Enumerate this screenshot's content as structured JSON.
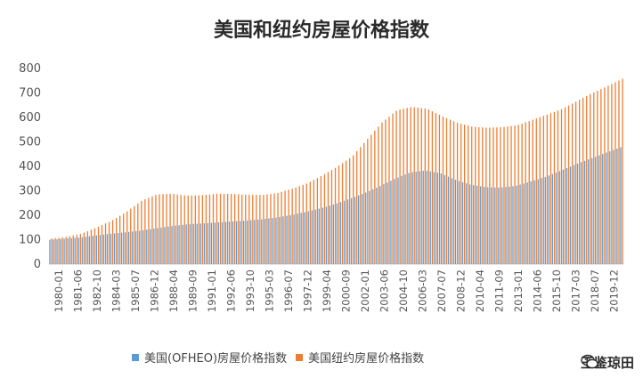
{
  "chart_data": {
    "type": "bar",
    "title": "美国和纽约房屋价格指数",
    "ylim": [
      0,
      800
    ],
    "y_ticks": [
      "0",
      "100",
      "200",
      "300",
      "400",
      "500",
      "600",
      "700",
      "800"
    ],
    "x_tick_labels": [
      "1980-01",
      "1981-06",
      "1982-10",
      "1984-03",
      "1985-07",
      "1986-12",
      "1988-04",
      "1989-09",
      "1991-01",
      "1992-06",
      "1993-10",
      "1995-03",
      "1996-07",
      "1997-12",
      "1999-04",
      "2000-09",
      "2002-01",
      "2003-06",
      "2004-10",
      "2006-03",
      "2007-07",
      "2008-12",
      "2010-04",
      "2011-09",
      "2013-01",
      "2014-06",
      "2015-10",
      "2017-03",
      "2018-07",
      "2019-12"
    ],
    "series": [
      {
        "name": "美国(OFHEO)房屋价格指数",
        "color": "#5b9bd5",
        "values": [
          100,
          104,
          109,
          117,
          124,
          130,
          137,
          146,
          155,
          162,
          166,
          170,
          174,
          178,
          183,
          190,
          200,
          213,
          228,
          246,
          268,
          292,
          320,
          350,
          375,
          383,
          372,
          345,
          325,
          315,
          313,
          320,
          338,
          357,
          382,
          408,
          432,
          455,
          478
        ]
      },
      {
        "name": "美国纽约房屋价格指数",
        "color": "#ed7d31",
        "values": [
          105,
          112,
          125,
          150,
          178,
          215,
          260,
          285,
          288,
          280,
          282,
          288,
          287,
          284,
          283,
          290,
          308,
          330,
          362,
          398,
          440,
          510,
          580,
          630,
          643,
          635,
          605,
          578,
          562,
          558,
          560,
          568,
          590,
          612,
          635,
          668,
          700,
          728,
          758
        ]
      }
    ],
    "legend_position": "bottom",
    "grid": false
  },
  "watermark": {
    "text": "玉鉴琼田",
    "icon": "wechat-icon"
  }
}
